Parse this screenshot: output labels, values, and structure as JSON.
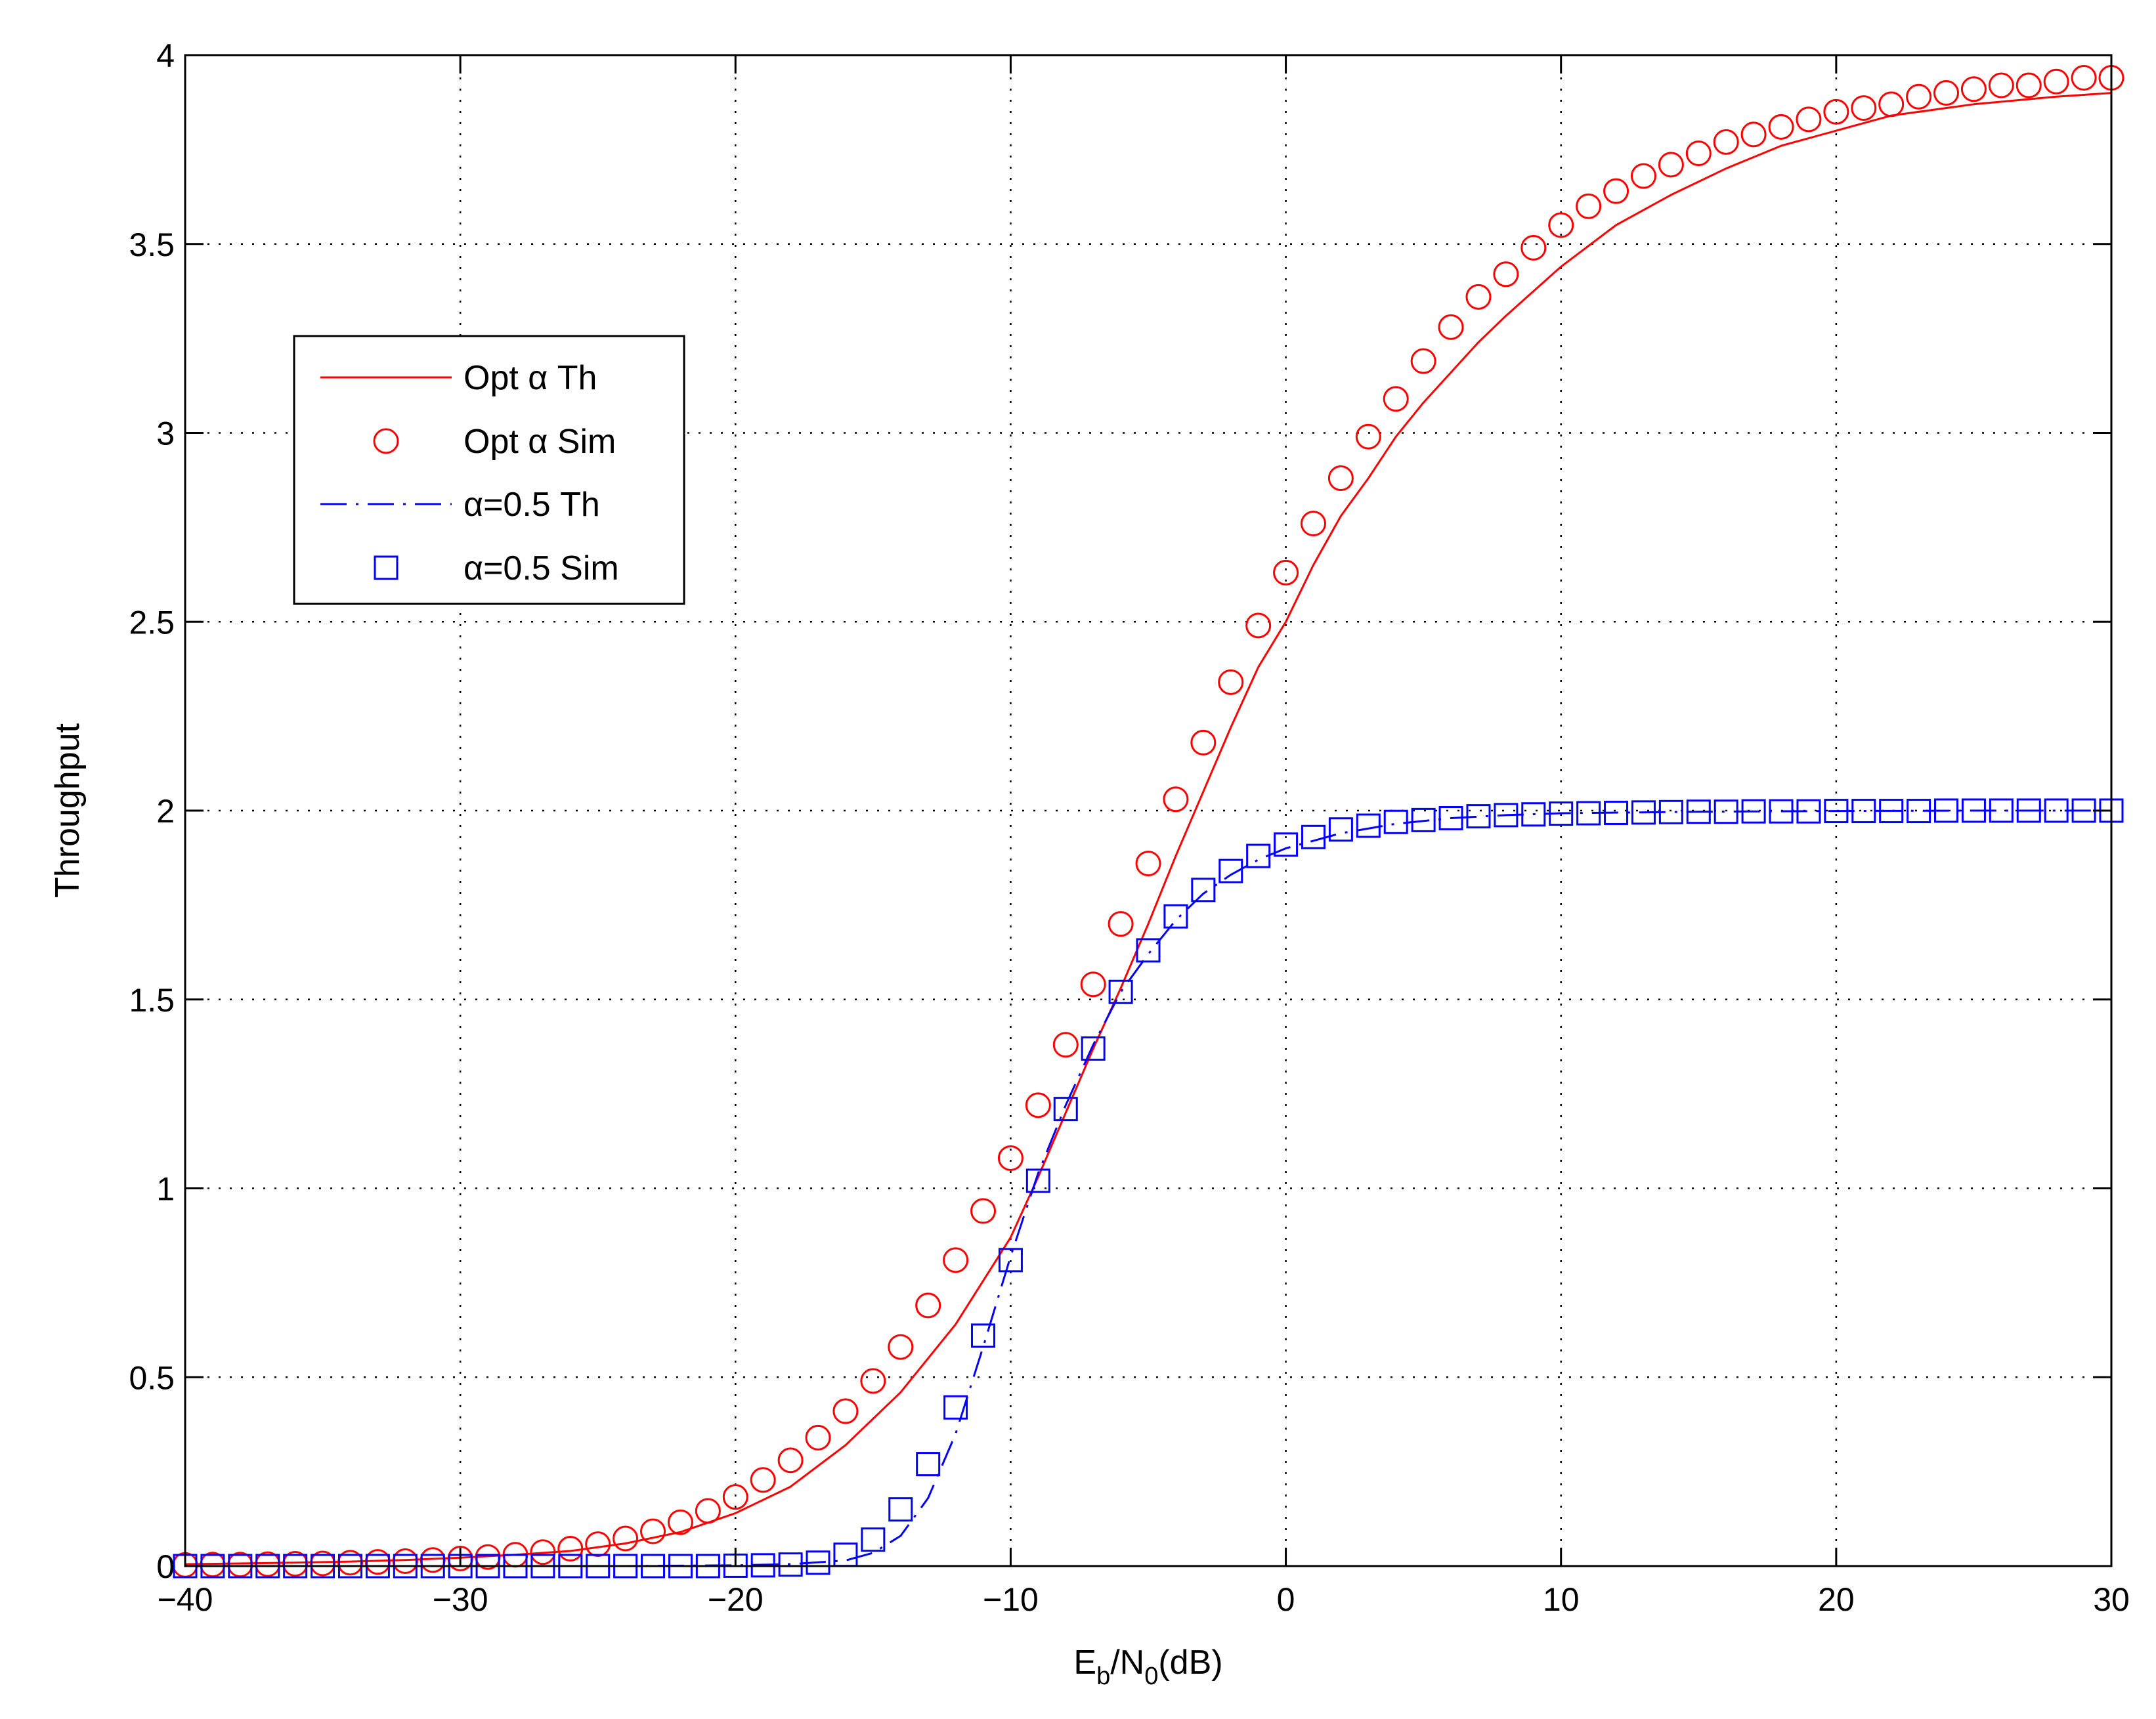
{
  "chart_data": {
    "type": "line",
    "title": "",
    "xlabel": {
      "base": "E",
      "sub1": "b",
      "mid": "/N",
      "sub2": "0",
      "tail": "(dB)"
    },
    "ylabel": "Throughput",
    "xlim": [
      -40,
      30
    ],
    "ylim": [
      0,
      4
    ],
    "xticks": [
      -40,
      -30,
      -20,
      -10,
      0,
      10,
      20,
      30
    ],
    "xtick_labels": [
      "−40",
      "−30",
      "−20",
      "−10",
      "0",
      "10",
      "20",
      "30"
    ],
    "yticks": [
      0,
      0.5,
      1,
      1.5,
      2,
      2.5,
      3,
      3.5,
      4
    ],
    "ytick_labels": [
      "0",
      "0.5",
      "1",
      "1.5",
      "2",
      "2.5",
      "3",
      "3.5",
      "4"
    ],
    "grid": true,
    "legend_position": "upper-left",
    "series": [
      {
        "name": "Opt α Th",
        "style": "solid-line",
        "color": "#ff0000",
        "x": [
          -40,
          -38,
          -36,
          -34,
          -32,
          -30,
          -28,
          -26,
          -24,
          -22,
          -20,
          -18,
          -16,
          -14,
          -12,
          -10,
          -9,
          -8,
          -7,
          -6,
          -5,
          -4,
          -3,
          -2,
          -1,
          0,
          1,
          2,
          3,
          4,
          5,
          6,
          7,
          8,
          10,
          12,
          14,
          16,
          18,
          20,
          22,
          25,
          28,
          30
        ],
        "y": [
          0.005,
          0.007,
          0.009,
          0.012,
          0.016,
          0.022,
          0.03,
          0.04,
          0.06,
          0.09,
          0.14,
          0.21,
          0.32,
          0.46,
          0.64,
          0.87,
          1.03,
          1.2,
          1.37,
          1.53,
          1.7,
          1.88,
          2.05,
          2.22,
          2.38,
          2.5,
          2.65,
          2.78,
          2.88,
          2.99,
          3.08,
          3.16,
          3.24,
          3.31,
          3.44,
          3.55,
          3.63,
          3.7,
          3.76,
          3.8,
          3.84,
          3.87,
          3.89,
          3.9
        ]
      },
      {
        "name": "Opt α Sim",
        "style": "circle-marker",
        "color": "#ff0000",
        "x": [
          -40,
          -39,
          -38,
          -37,
          -36,
          -35,
          -34,
          -33,
          -32,
          -31,
          -30,
          -29,
          -28,
          -27,
          -26,
          -25,
          -24,
          -23,
          -22,
          -21,
          -20,
          -19,
          -18,
          -17,
          -16,
          -15,
          -14,
          -13,
          -12,
          -11,
          -10,
          -9,
          -8,
          -7,
          -6,
          -5,
          -4,
          -3,
          -2,
          -1,
          0,
          1,
          2,
          3,
          4,
          5,
          6,
          7,
          8,
          9,
          10,
          11,
          12,
          13,
          14,
          15,
          16,
          17,
          18,
          19,
          20,
          21,
          22,
          23,
          24,
          25,
          26,
          27,
          28,
          29,
          30
        ],
        "y": [
          0.003,
          0.004,
          0.004,
          0.005,
          0.006,
          0.007,
          0.009,
          0.011,
          0.013,
          0.016,
          0.02,
          0.024,
          0.03,
          0.037,
          0.046,
          0.058,
          0.073,
          0.092,
          0.116,
          0.146,
          0.183,
          0.228,
          0.28,
          0.34,
          0.41,
          0.49,
          0.58,
          0.69,
          0.81,
          0.94,
          1.08,
          1.22,
          1.38,
          1.54,
          1.7,
          1.86,
          2.03,
          2.18,
          2.34,
          2.49,
          2.63,
          2.76,
          2.88,
          2.99,
          3.09,
          3.19,
          3.28,
          3.36,
          3.42,
          3.49,
          3.55,
          3.6,
          3.64,
          3.68,
          3.71,
          3.74,
          3.77,
          3.79,
          3.81,
          3.83,
          3.85,
          3.86,
          3.87,
          3.89,
          3.9,
          3.91,
          3.92,
          3.92,
          3.93,
          3.94,
          3.94
        ]
      },
      {
        "name": "α=0.5 Th",
        "style": "dash-dot-line",
        "color": "#0000ff",
        "x": [
          -40,
          -30,
          -24,
          -20,
          -18,
          -16,
          -15,
          -14,
          -13,
          -12,
          -11,
          -10,
          -9,
          -8,
          -7,
          -6,
          -5,
          -4,
          -3,
          -2,
          -1,
          0,
          2,
          4,
          6,
          8,
          10,
          15,
          20,
          25,
          30
        ],
        "y": [
          0,
          0,
          0,
          0.002,
          0.005,
          0.015,
          0.035,
          0.08,
          0.18,
          0.35,
          0.58,
          0.82,
          1.04,
          1.22,
          1.38,
          1.52,
          1.62,
          1.71,
          1.78,
          1.83,
          1.87,
          1.9,
          1.94,
          1.965,
          1.98,
          1.988,
          1.993,
          1.997,
          1.999,
          2.0,
          2.0
        ]
      },
      {
        "name": "α=0.5 Sim",
        "style": "square-marker",
        "color": "#0000ff",
        "x": [
          -40,
          -39,
          -38,
          -37,
          -36,
          -35,
          -34,
          -33,
          -32,
          -31,
          -30,
          -29,
          -28,
          -27,
          -26,
          -25,
          -24,
          -23,
          -22,
          -21,
          -20,
          -19,
          -18,
          -17,
          -16,
          -15,
          -14,
          -13,
          -12,
          -11,
          -10,
          -9,
          -8,
          -7,
          -6,
          -5,
          -4,
          -3,
          -2,
          -1,
          0,
          1,
          2,
          3,
          4,
          5,
          6,
          7,
          8,
          9,
          10,
          11,
          12,
          13,
          14,
          15,
          16,
          17,
          18,
          19,
          20,
          21,
          22,
          23,
          24,
          25,
          26,
          27,
          28,
          29,
          30
        ],
        "y": [
          0,
          0,
          0,
          0,
          0,
          0,
          0,
          0,
          0,
          0,
          0,
          0,
          0,
          0,
          0,
          0,
          0,
          0,
          0,
          0,
          0.001,
          0.002,
          0.004,
          0.009,
          0.03,
          0.07,
          0.15,
          0.27,
          0.42,
          0.61,
          0.81,
          1.02,
          1.21,
          1.37,
          1.52,
          1.63,
          1.72,
          1.79,
          1.84,
          1.88,
          1.91,
          1.93,
          1.95,
          1.96,
          1.97,
          1.975,
          1.98,
          1.985,
          1.988,
          1.99,
          1.992,
          1.993,
          1.994,
          1.995,
          1.996,
          1.997,
          1.997,
          1.998,
          1.998,
          1.998,
          1.999,
          1.999,
          1.999,
          1.999,
          2.0,
          2.0,
          2.0,
          2.0,
          2.0,
          2.0,
          2.0
        ]
      }
    ]
  }
}
